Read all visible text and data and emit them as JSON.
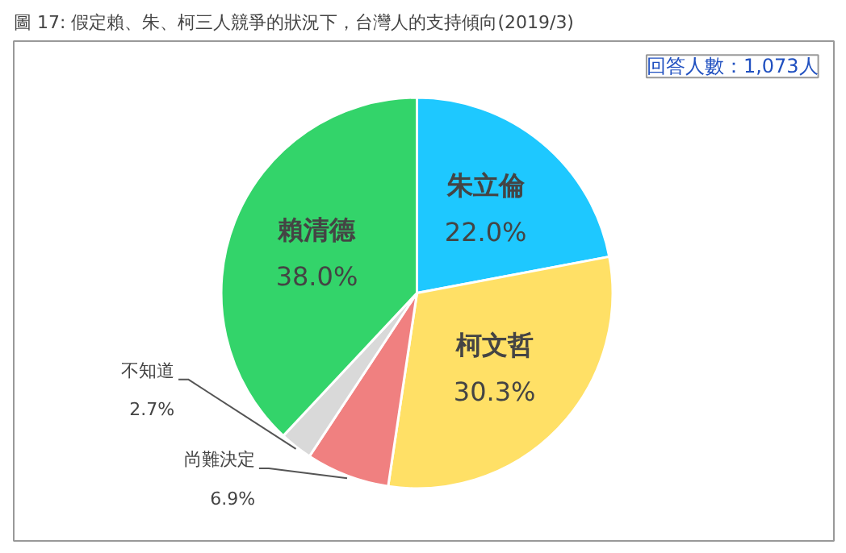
{
  "chart_data": {
    "type": "pie",
    "title": "圖 17: 假定賴、朱、柯三人競爭的狀況下，台灣人的支持傾向(2019/3)",
    "annotations": [
      "回答人數：1,073人"
    ],
    "categories": [
      "朱立倫",
      "柯文哲",
      "尚難決定",
      "不知道",
      "賴清德"
    ],
    "values": [
      22.0,
      30.3,
      6.9,
      2.7,
      38.0
    ],
    "value_labels": [
      "22.0%",
      "30.3%",
      "6.9%",
      "2.7%",
      "38.0%"
    ],
    "colors": [
      "#1ec8ff",
      "#ffe066",
      "#f08080",
      "#d9d9d9",
      "#33d46a"
    ]
  }
}
